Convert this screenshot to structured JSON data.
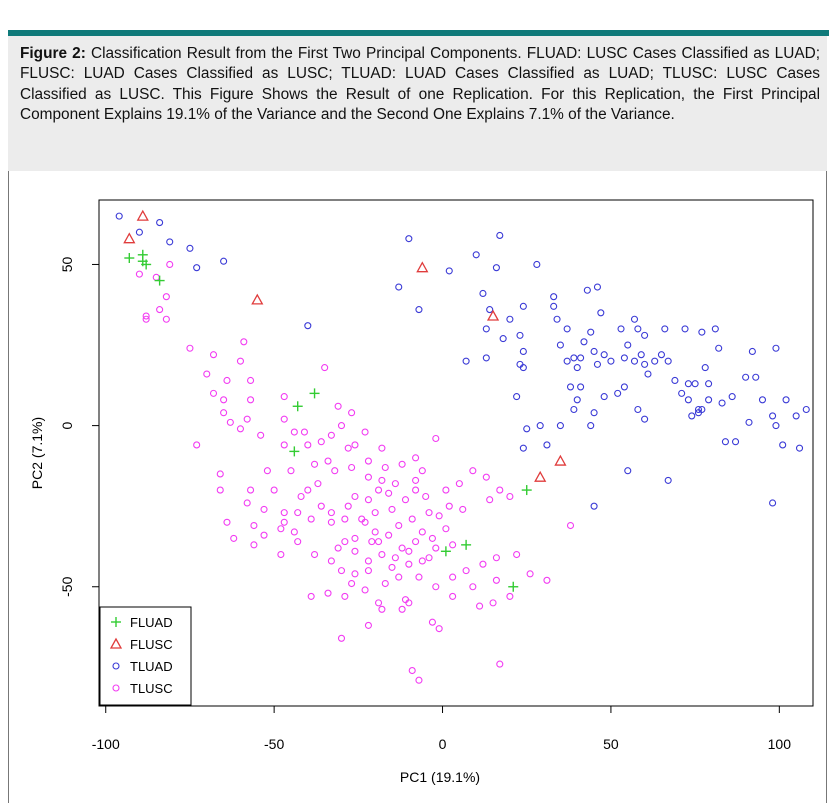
{
  "caption": {
    "label": "Figure 2:",
    "text": "Classification Result from the First Two Principal Components. FLUAD: LUSC Cases Classified as LUAD; FLUSC: LUAD Cases Classified as LUSC; TLUAD: LUAD Cases Classified as LUAD; TLUSC: LUSC Cases Classified as LUSC. This Figure Shows the Result of one Replication. For this Replication, the First Principal Component Explains 19.1% of the Variance and the Second One Explains 7.1% of the Variance."
  },
  "colors": {
    "header_bar": "#0f7a7a",
    "caption_bg": "#ececec",
    "FLUAD": "#33cc33",
    "FLUSC": "#e03c3c",
    "TLUAD": "#3a3ad6",
    "TLUSC": "#f23cf2"
  },
  "chart_data": {
    "type": "scatter",
    "title": "",
    "xlabel": "PC1 (19.1%)",
    "ylabel": "PC2 (7.1%)",
    "xlim": [
      -102,
      110
    ],
    "ylim": [
      -87,
      70
    ],
    "xticks": [
      -100,
      -50,
      0,
      50,
      100
    ],
    "yticks": [
      -50,
      0,
      50
    ],
    "xtick_labels": [
      "-100",
      "-50",
      "0",
      "50",
      "100"
    ],
    "ytick_labels": [
      "-50",
      "0",
      "50"
    ],
    "grid": false,
    "legend_position": "bottom-left",
    "legend": [
      "FLUAD",
      "FLUSC",
      "TLUAD",
      "TLUSC"
    ],
    "series": [
      {
        "name": "FLUAD",
        "marker": "plus",
        "points": [
          [
            -93,
            52
          ],
          [
            -89,
            53
          ],
          [
            -89,
            51
          ],
          [
            -88,
            50
          ],
          [
            -84,
            45
          ],
          [
            -38,
            10
          ],
          [
            -43,
            6
          ],
          [
            -44,
            -8
          ],
          [
            25,
            -20
          ],
          [
            7,
            -37
          ],
          [
            1,
            -39
          ],
          [
            21,
            -50
          ]
        ]
      },
      {
        "name": "FLUSC",
        "marker": "triangle",
        "points": [
          [
            -89,
            65
          ],
          [
            -93,
            58
          ],
          [
            -55,
            39
          ],
          [
            -6,
            49
          ],
          [
            15,
            34
          ],
          [
            35,
            -11
          ],
          [
            29,
            -16
          ]
        ]
      },
      {
        "name": "TLUAD",
        "marker": "circle",
        "points": [
          [
            -96,
            65
          ],
          [
            -84,
            63
          ],
          [
            -90,
            60
          ],
          [
            -81,
            57
          ],
          [
            -75,
            55
          ],
          [
            -73,
            49
          ],
          [
            -65,
            51
          ],
          [
            -40,
            31
          ],
          [
            -10,
            58
          ],
          [
            -13,
            43
          ],
          [
            -7,
            36
          ],
          [
            2,
            48
          ],
          [
            10,
            53
          ],
          [
            17,
            59
          ],
          [
            16,
            49
          ],
          [
            12,
            41
          ],
          [
            14,
            36
          ],
          [
            13,
            30
          ],
          [
            18,
            27
          ],
          [
            20,
            33
          ],
          [
            13,
            21
          ],
          [
            7,
            20
          ],
          [
            24,
            37
          ],
          [
            23,
            28
          ],
          [
            28,
            50
          ],
          [
            24,
            23
          ],
          [
            23,
            19
          ],
          [
            33,
            40
          ],
          [
            33,
            37
          ],
          [
            34,
            33
          ],
          [
            37,
            30
          ],
          [
            35,
            25
          ],
          [
            37,
            20
          ],
          [
            39,
            21
          ],
          [
            43,
            42
          ],
          [
            46,
            43
          ],
          [
            47,
            35
          ],
          [
            44,
            29
          ],
          [
            45,
            23
          ],
          [
            46,
            19
          ],
          [
            42,
            26
          ],
          [
            41,
            21
          ],
          [
            40,
            18
          ],
          [
            48,
            22
          ],
          [
            50,
            20
          ],
          [
            54,
            21
          ],
          [
            55,
            25
          ],
          [
            53,
            30
          ],
          [
            57,
            33
          ],
          [
            58,
            30
          ],
          [
            60,
            28
          ],
          [
            57,
            20
          ],
          [
            59,
            22
          ],
          [
            60,
            19
          ],
          [
            61,
            16
          ],
          [
            63,
            20
          ],
          [
            65,
            22
          ],
          [
            67,
            20
          ],
          [
            69,
            14
          ],
          [
            71,
            10
          ],
          [
            73,
            13
          ],
          [
            66,
            30
          ],
          [
            72,
            30
          ],
          [
            77,
            29
          ],
          [
            81,
            30
          ],
          [
            82,
            24
          ],
          [
            78,
            18
          ],
          [
            79,
            13
          ],
          [
            75,
            13
          ],
          [
            73,
            8
          ],
          [
            76,
            5
          ],
          [
            77,
            5
          ],
          [
            76,
            4
          ],
          [
            74,
            3
          ],
          [
            79,
            8
          ],
          [
            83,
            7
          ],
          [
            86,
            9
          ],
          [
            90,
            15
          ],
          [
            93,
            15
          ],
          [
            92,
            23
          ],
          [
            99,
            24
          ],
          [
            95,
            8
          ],
          [
            98,
            3
          ],
          [
            99,
            0
          ],
          [
            102,
            8
          ],
          [
            105,
            3
          ],
          [
            108,
            5
          ],
          [
            101,
            -6
          ],
          [
            106,
            -7
          ],
          [
            91,
            1
          ],
          [
            87,
            -5
          ],
          [
            84,
            -5
          ],
          [
            67,
            -17
          ],
          [
            55,
            -14
          ],
          [
            98,
            -24
          ],
          [
            45,
            -25
          ],
          [
            60,
            2
          ],
          [
            58,
            5
          ],
          [
            52,
            10
          ],
          [
            54,
            12
          ],
          [
            48,
            9
          ],
          [
            41,
            12
          ],
          [
            38,
            12
          ],
          [
            39,
            5
          ],
          [
            40,
            8
          ],
          [
            45,
            4
          ],
          [
            44,
            0
          ],
          [
            35,
            0
          ],
          [
            29,
            0
          ],
          [
            25,
            -1
          ],
          [
            24,
            -7
          ],
          [
            31,
            -6
          ],
          [
            22,
            9
          ],
          [
            24,
            18
          ]
        ]
      },
      {
        "name": "TLUSC",
        "marker": "circle",
        "points": [
          [
            -90,
            47
          ],
          [
            -85,
            46
          ],
          [
            -81,
            50
          ],
          [
            -82,
            40
          ],
          [
            -84,
            36
          ],
          [
            -88,
            33
          ],
          [
            -88,
            34
          ],
          [
            -82,
            33
          ],
          [
            -75,
            24
          ],
          [
            -68,
            22
          ],
          [
            -59,
            26
          ],
          [
            -60,
            20
          ],
          [
            -70,
            16
          ],
          [
            -64,
            14
          ],
          [
            -57,
            14
          ],
          [
            -68,
            10
          ],
          [
            -65,
            8
          ],
          [
            -65,
            4
          ],
          [
            -63,
            1
          ],
          [
            -58,
            2
          ],
          [
            -57,
            8
          ],
          [
            -47,
            9
          ],
          [
            -60,
            -1
          ],
          [
            -54,
            -3
          ],
          [
            -47,
            -6
          ],
          [
            -52,
            -14
          ],
          [
            -58,
            -24
          ],
          [
            -66,
            -15
          ],
          [
            -64,
            -30
          ],
          [
            -56,
            -31
          ],
          [
            -48,
            -32
          ],
          [
            -43,
            -36
          ],
          [
            -39,
            -29
          ],
          [
            -33,
            -27
          ],
          [
            -28,
            -25
          ],
          [
            -26,
            -22
          ],
          [
            -23,
            -30
          ],
          [
            -20,
            -33
          ],
          [
            -16,
            -34
          ],
          [
            -13,
            -31
          ],
          [
            -9,
            -29
          ],
          [
            -6,
            -33
          ],
          [
            -3,
            -35
          ],
          [
            1,
            -32
          ],
          [
            3,
            -37
          ],
          [
            -2,
            -38
          ],
          [
            -6,
            -42
          ],
          [
            -10,
            -43
          ],
          [
            -14,
            -41
          ],
          [
            -18,
            -40
          ],
          [
            -22,
            -42
          ],
          [
            -26,
            -46
          ],
          [
            -27,
            -49
          ],
          [
            -29,
            -53
          ],
          [
            -34,
            -52
          ],
          [
            -39,
            -53
          ],
          [
            -19,
            -55
          ],
          [
            -18,
            -57
          ],
          [
            -22,
            -62
          ],
          [
            -30,
            -66
          ],
          [
            -12,
            -57
          ],
          [
            -2,
            -50
          ],
          [
            3,
            -53
          ],
          [
            -3,
            -61
          ],
          [
            -10,
            -55
          ],
          [
            -11,
            -54
          ],
          [
            -1,
            -63
          ],
          [
            11,
            -56
          ],
          [
            15,
            -55
          ],
          [
            20,
            -53
          ],
          [
            16,
            -48
          ],
          [
            31,
            -48
          ],
          [
            38,
            -31
          ],
          [
            17,
            -74
          ],
          [
            -7,
            -79
          ],
          [
            -9,
            -76
          ],
          [
            -73,
            -6
          ],
          [
            -45,
            -14
          ],
          [
            -42,
            -22
          ],
          [
            -37,
            -18
          ],
          [
            -32,
            -14
          ],
          [
            -27,
            -13
          ],
          [
            -22,
            -11
          ],
          [
            -17,
            -13
          ],
          [
            -18,
            -7
          ],
          [
            -23,
            -2
          ],
          [
            -28,
            -7
          ],
          [
            -34,
            -11
          ],
          [
            -40,
            -6
          ],
          [
            -33,
            -3
          ],
          [
            -30,
            0
          ],
          [
            -26,
            -6
          ],
          [
            -22,
            -16
          ],
          [
            -16,
            -21
          ],
          [
            -19,
            -20
          ],
          [
            -14,
            -18
          ],
          [
            -11,
            -23
          ],
          [
            -8,
            -20
          ],
          [
            -2,
            -4
          ],
          [
            1,
            -20
          ],
          [
            5,
            -18
          ],
          [
            9,
            -14
          ],
          [
            13,
            -16
          ],
          [
            17,
            -20
          ],
          [
            20,
            -22
          ],
          [
            14,
            -23
          ],
          [
            6,
            -26
          ],
          [
            2,
            -25
          ],
          [
            -5,
            -22
          ],
          [
            -4,
            -27
          ],
          [
            -1,
            -28
          ],
          [
            -8,
            -17
          ],
          [
            -12,
            -12
          ],
          [
            -8,
            -10
          ],
          [
            -6,
            -14
          ],
          [
            -15,
            -26
          ],
          [
            -20,
            -27
          ],
          [
            -24,
            -29
          ],
          [
            -29,
            -29
          ],
          [
            -33,
            -30
          ],
          [
            -36,
            -25
          ],
          [
            -40,
            -20
          ],
          [
            -43,
            -27
          ],
          [
            -47,
            -27
          ],
          [
            -50,
            -20
          ],
          [
            -53,
            -34
          ],
          [
            -48,
            -40
          ],
          [
            -38,
            -40
          ],
          [
            -31,
            -38
          ],
          [
            -26,
            -35
          ],
          [
            -21,
            -36
          ],
          [
            -12,
            -38
          ],
          [
            -8,
            -36
          ],
          [
            -4,
            -41
          ],
          [
            3,
            -47
          ],
          [
            7,
            -45
          ],
          [
            12,
            -43
          ],
          [
            16,
            -41
          ],
          [
            22,
            -40
          ],
          [
            26,
            -46
          ],
          [
            9,
            -50
          ],
          [
            -7,
            -47
          ],
          [
            -13,
            -47
          ],
          [
            -17,
            -49
          ],
          [
            -23,
            -51
          ],
          [
            -10,
            -39
          ],
          [
            -66,
            -20
          ],
          [
            -57,
            -20
          ],
          [
            -38,
            -12
          ],
          [
            -36,
            -5
          ],
          [
            -41,
            -2
          ],
          [
            -47,
            2
          ],
          [
            -44,
            -2
          ],
          [
            -31,
            6
          ],
          [
            -27,
            4
          ],
          [
            -35,
            18
          ],
          [
            -56,
            -37
          ],
          [
            -47,
            -30
          ],
          [
            -29,
            -36
          ],
          [
            -26,
            -39
          ],
          [
            -33,
            -42
          ],
          [
            -44,
            -33
          ],
          [
            -53,
            -26
          ],
          [
            -62,
            -35
          ],
          [
            -30,
            -45
          ],
          [
            -22,
            -45
          ],
          [
            -15,
            -44
          ],
          [
            -19,
            -36
          ],
          [
            -22,
            -23
          ],
          [
            -18,
            -17
          ]
        ]
      }
    ]
  }
}
